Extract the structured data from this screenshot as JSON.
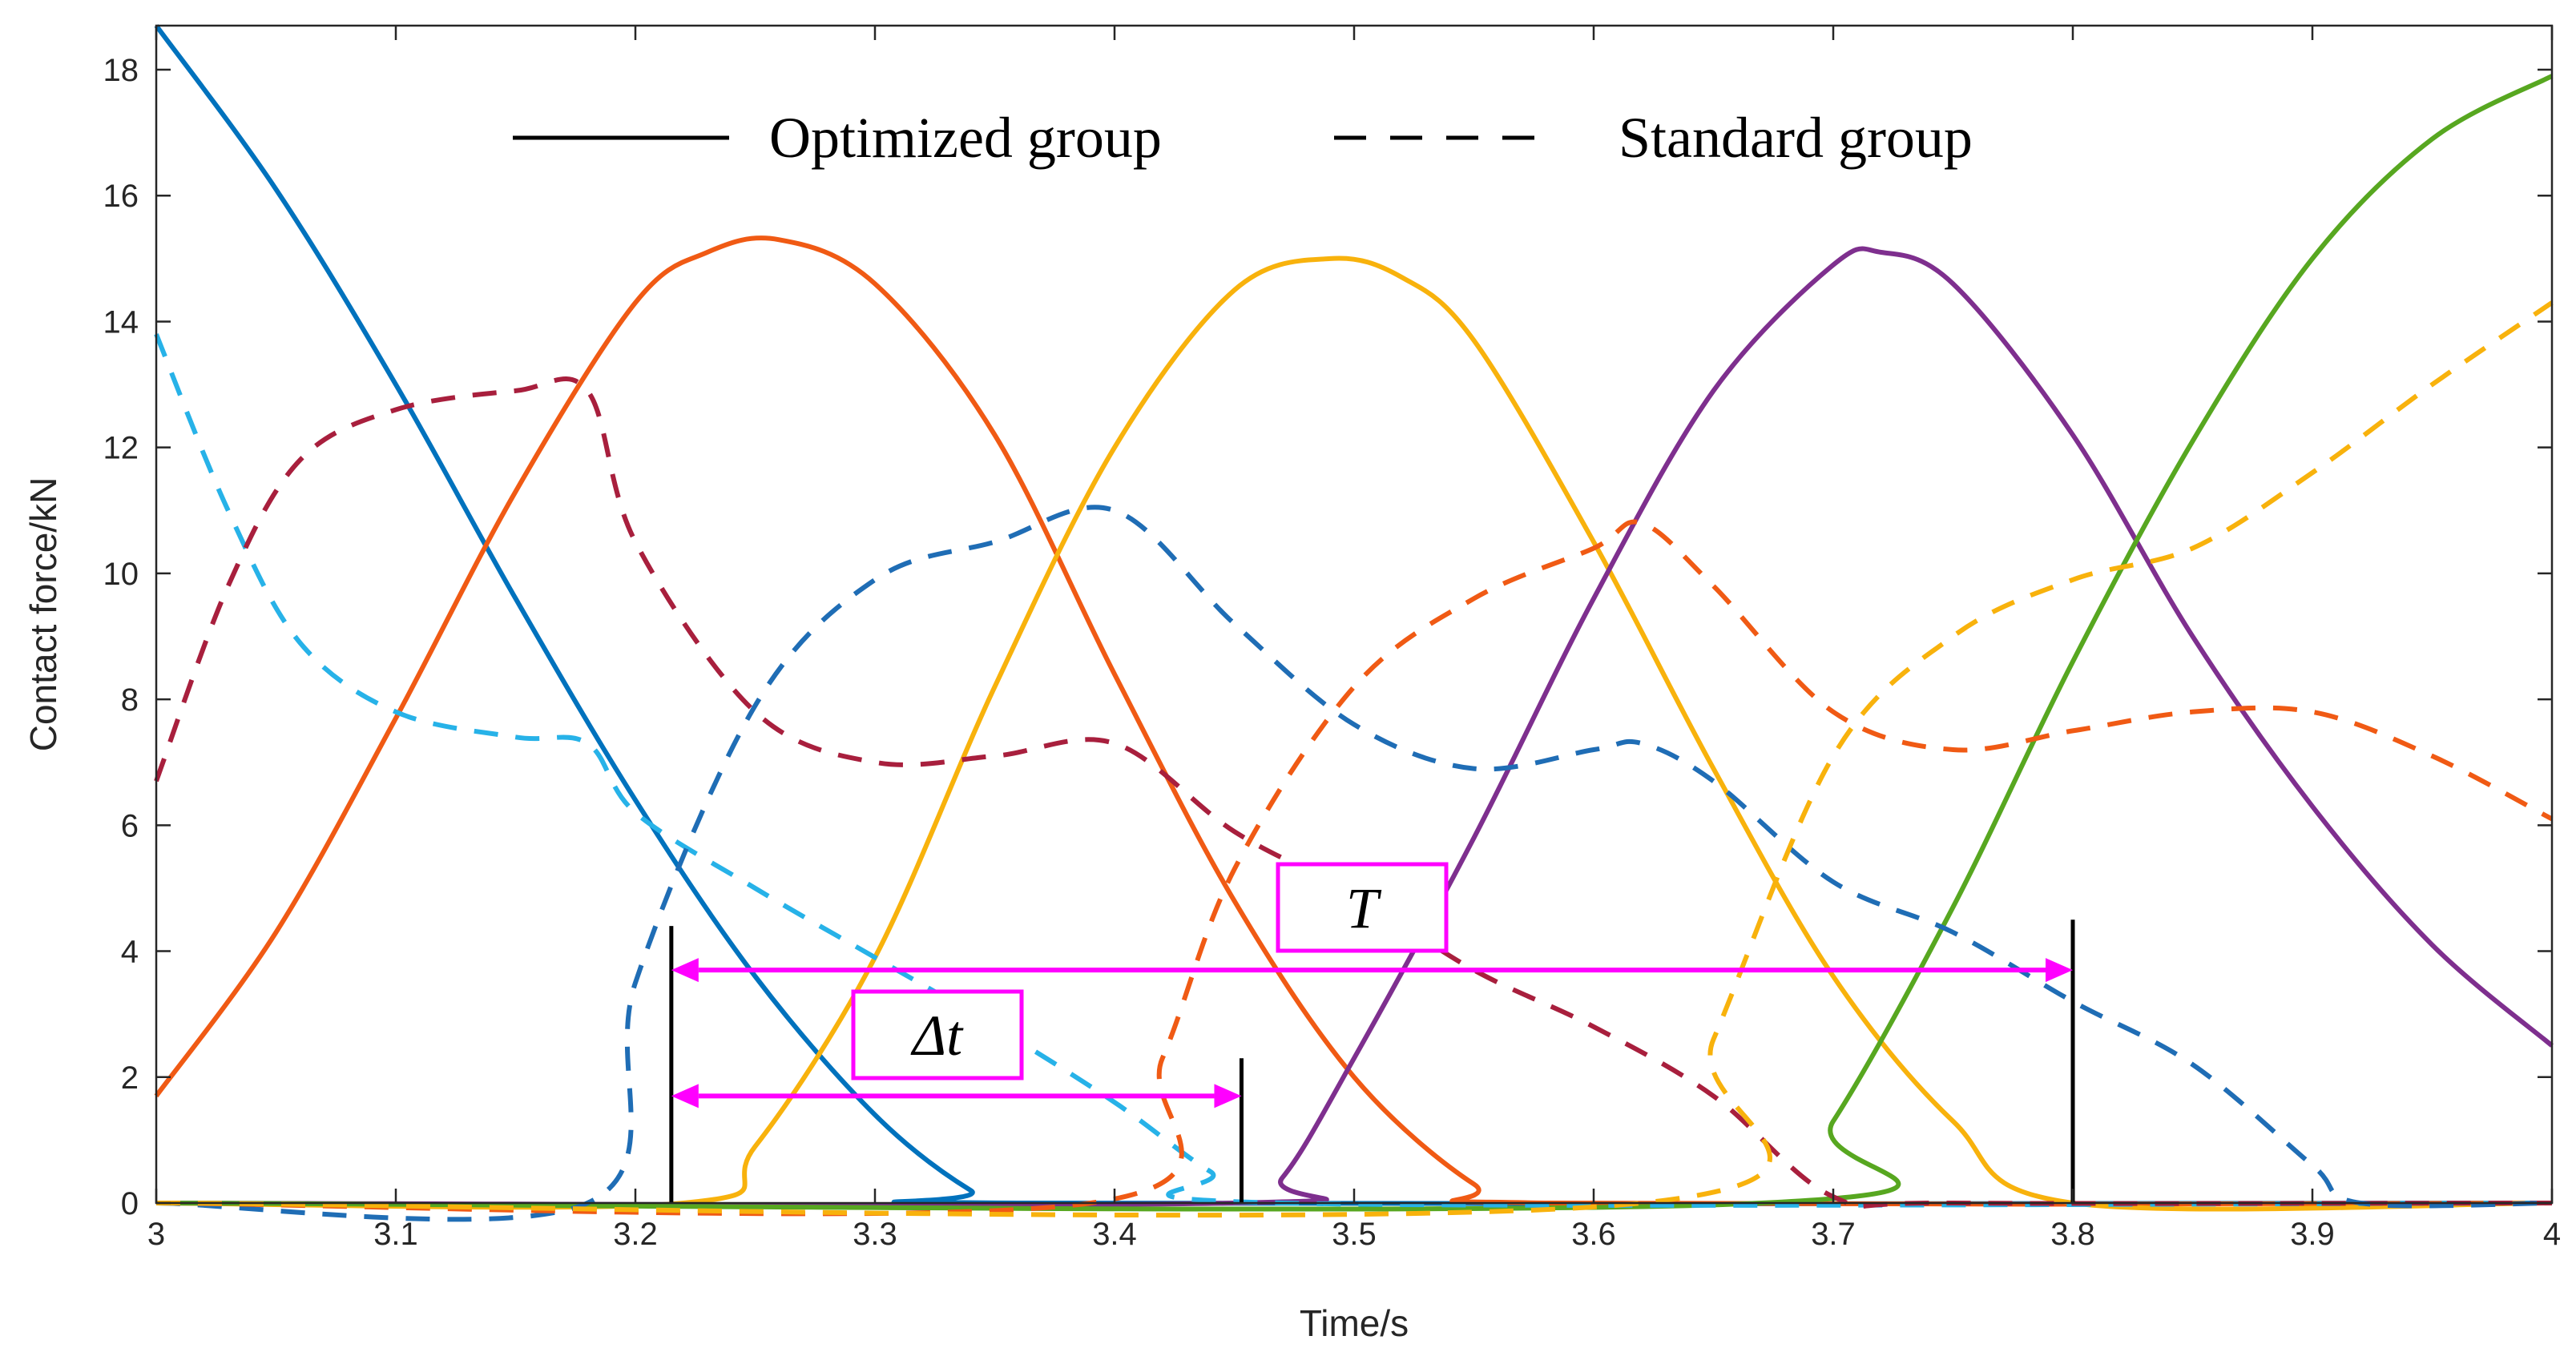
{
  "chart_data": {
    "type": "line",
    "xlabel": "Time/s",
    "ylabel": "Contact force/kN",
    "xlim": [
      3,
      4
    ],
    "ylim": [
      0,
      18.7
    ],
    "xticks": [
      "3",
      "3.1",
      "3.2",
      "3.3",
      "3.4",
      "3.5",
      "3.6",
      "3.7",
      "3.8",
      "3.9",
      "4"
    ],
    "yticks": [
      "0",
      "2",
      "4",
      "6",
      "8",
      "10",
      "12",
      "14",
      "16",
      "18"
    ],
    "grid": false,
    "legend": {
      "position": "top-center",
      "entries": [
        {
          "label": "Optimized group",
          "style": "solid"
        },
        {
          "label": "Standard group",
          "style": "dashed"
        }
      ]
    },
    "series": [
      {
        "name": "Optimized wheel 1",
        "style": "solid",
        "color": "#0072BD",
        "x": [
          3.0,
          3.05,
          3.1,
          3.15,
          3.2,
          3.25,
          3.3,
          3.34,
          3.36,
          4.0
        ],
        "y": [
          18.7,
          16.1,
          13.0,
          9.6,
          6.4,
          3.6,
          1.4,
          0.2,
          0.0,
          0.0
        ]
      },
      {
        "name": "Optimized wheel 2",
        "style": "solid",
        "color": "#F05A14",
        "x": [
          3.0,
          3.05,
          3.1,
          3.15,
          3.2,
          3.23,
          3.26,
          3.3,
          3.35,
          3.4,
          3.45,
          3.5,
          3.55,
          3.58,
          4.0
        ],
        "y": [
          1.7,
          4.3,
          7.7,
          11.3,
          14.3,
          15.1,
          15.3,
          14.6,
          12.2,
          8.4,
          4.8,
          2.0,
          0.3,
          0.0,
          0.0
        ]
      },
      {
        "name": "Optimized wheel 3",
        "style": "solid",
        "color": "#F8B20C",
        "x": [
          3.0,
          3.22,
          3.25,
          3.3,
          3.35,
          3.4,
          3.45,
          3.49,
          3.52,
          3.55,
          3.6,
          3.65,
          3.7,
          3.75,
          3.8,
          4.0
        ],
        "y": [
          0.0,
          0.0,
          0.9,
          3.9,
          8.2,
          12.0,
          14.5,
          15.0,
          14.7,
          13.7,
          10.5,
          6.9,
          3.6,
          1.3,
          0.0,
          0.0
        ]
      },
      {
        "name": "Optimized wheel 4",
        "style": "solid",
        "color": "#7E2F8E",
        "x": [
          3.0,
          3.45,
          3.47,
          3.5,
          3.55,
          3.6,
          3.65,
          3.7,
          3.72,
          3.75,
          3.8,
          3.85,
          3.9,
          3.95,
          4.0
        ],
        "y": [
          0.0,
          0.0,
          0.4,
          2.3,
          5.8,
          9.6,
          12.9,
          14.9,
          15.1,
          14.6,
          12.2,
          9.0,
          6.3,
          4.1,
          2.5
        ]
      },
      {
        "name": "Optimized wheel 5",
        "style": "solid",
        "color": "#57A720",
        "x": [
          3.0,
          3.67,
          3.7,
          3.75,
          3.8,
          3.85,
          3.9,
          3.95,
          4.0
        ],
        "y": [
          0.0,
          0.0,
          1.3,
          4.7,
          8.6,
          12.1,
          15.0,
          16.9,
          17.9
        ]
      },
      {
        "name": "Standard wheel 1",
        "style": "dashed",
        "color": "#27B2E8",
        "x": [
          3.0,
          3.03,
          3.06,
          3.1,
          3.15,
          3.18,
          3.2,
          3.25,
          3.3,
          3.35,
          3.4,
          3.44,
          3.47,
          4.0
        ],
        "y": [
          13.8,
          11.0,
          8.9,
          7.8,
          7.4,
          7.3,
          6.2,
          5.0,
          3.9,
          2.8,
          1.6,
          0.5,
          0.0,
          0.0
        ]
      },
      {
        "name": "Standard wheel 2",
        "style": "dashed",
        "color": "#A81F3D",
        "x": [
          3.0,
          3.03,
          3.06,
          3.1,
          3.15,
          3.18,
          3.2,
          3.25,
          3.3,
          3.35,
          3.4,
          3.45,
          3.5,
          3.55,
          3.6,
          3.65,
          3.7,
          3.75,
          4.0
        ],
        "y": [
          6.7,
          9.8,
          11.8,
          12.6,
          12.9,
          12.9,
          10.5,
          7.8,
          7.0,
          7.1,
          7.3,
          5.9,
          4.9,
          3.7,
          2.8,
          1.7,
          0.1,
          0.0,
          0.0
        ]
      },
      {
        "name": "Standard wheel 3",
        "style": "dashed",
        "color": "#1F6DB5",
        "x": [
          3.0,
          3.18,
          3.2,
          3.25,
          3.3,
          3.35,
          3.4,
          3.45,
          3.5,
          3.55,
          3.6,
          3.62,
          3.65,
          3.7,
          3.75,
          3.8,
          3.85,
          3.9,
          3.92,
          4.0
        ],
        "y": [
          0.0,
          0.0,
          3.5,
          7.9,
          9.9,
          10.5,
          11.0,
          9.2,
          7.6,
          6.9,
          7.2,
          7.3,
          6.7,
          5.1,
          4.3,
          3.2,
          2.2,
          0.6,
          0.0,
          0.0
        ]
      },
      {
        "name": "Standard wheel 4",
        "style": "dashed",
        "color": "#F05A14",
        "x": [
          3.0,
          3.39,
          3.42,
          3.45,
          3.5,
          3.55,
          3.6,
          3.62,
          3.65,
          3.7,
          3.75,
          3.8,
          3.85,
          3.9,
          3.95,
          4.0
        ],
        "y": [
          0.0,
          0.0,
          2.3,
          5.3,
          8.2,
          9.6,
          10.4,
          10.8,
          9.8,
          7.8,
          7.2,
          7.5,
          7.8,
          7.8,
          7.1,
          6.1
        ]
      },
      {
        "name": "Standard wheel 5",
        "style": "dashed",
        "color": "#F8B20C",
        "x": [
          3.0,
          3.62,
          3.65,
          3.7,
          3.75,
          3.8,
          3.85,
          3.9,
          3.95,
          4.0
        ],
        "y": [
          0.0,
          0.0,
          2.6,
          7.1,
          9.0,
          9.9,
          10.4,
          11.6,
          13.0,
          14.3
        ]
      }
    ],
    "annotations": [
      {
        "label": "T",
        "from_x": 3.215,
        "to_x": 3.8,
        "y": 3.7,
        "color": "#FF00FF"
      },
      {
        "label": "Δt",
        "from_x": 3.215,
        "to_x": 3.453,
        "y": 1.7,
        "color": "#FF00FF"
      }
    ],
    "markers": [
      {
        "x": 3.215,
        "y_top": 4.4
      },
      {
        "x": 3.453,
        "y_top": 2.3
      },
      {
        "x": 3.8,
        "y_top": 4.5
      }
    ]
  }
}
